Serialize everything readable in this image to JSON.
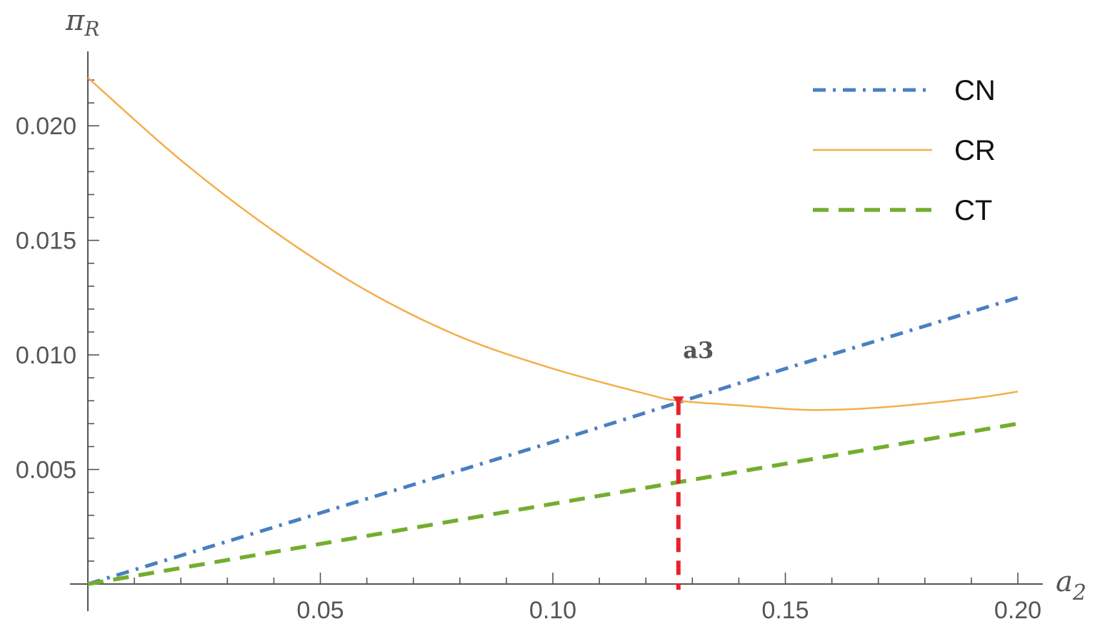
{
  "chart_data": {
    "type": "line",
    "xlabel": "a",
    "xlabel_sub": "2",
    "ylabel": "π",
    "ylabel_sub": "R",
    "xlim": [
      0,
      0.2
    ],
    "ylim": [
      0,
      0.0225
    ],
    "x_ticks": [
      {
        "value": 0.05,
        "label": "0.05"
      },
      {
        "value": 0.1,
        "label": "0.10"
      },
      {
        "value": 0.15,
        "label": "0.15"
      },
      {
        "value": 0.2,
        "label": "0.20"
      }
    ],
    "y_ticks": [
      {
        "value": 0.005,
        "label": "0.005"
      },
      {
        "value": 0.01,
        "label": "0.010"
      },
      {
        "value": 0.015,
        "label": "0.015"
      },
      {
        "value": 0.02,
        "label": "0.020"
      }
    ],
    "legend_position": "top-right",
    "series": [
      {
        "name": "CN",
        "color": "#4a7fc1",
        "dash": "dashdot",
        "x": [
          0,
          0.05,
          0.1,
          0.15,
          0.2
        ],
        "y": [
          0,
          0.0031,
          0.0062,
          0.0094,
          0.0125
        ]
      },
      {
        "name": "CR",
        "color": "#f5ae4a",
        "dash": "solid",
        "x": [
          0,
          0.02,
          0.04,
          0.06,
          0.08,
          0.1,
          0.12,
          0.127,
          0.14,
          0.155,
          0.17,
          0.19,
          0.2
        ],
        "y": [
          0.0221,
          0.0185,
          0.0154,
          0.0128,
          0.0108,
          0.0094,
          0.0083,
          0.008,
          0.0078,
          0.0076,
          0.0077,
          0.0081,
          0.0084
        ]
      },
      {
        "name": "CT",
        "color": "#74ad2e",
        "dash": "dashed",
        "x": [
          0,
          0.05,
          0.1,
          0.15,
          0.2
        ],
        "y": [
          0,
          0.00175,
          0.0035,
          0.00525,
          0.007
        ]
      }
    ],
    "annotations": [
      {
        "label": "a3",
        "x": 0.127,
        "y": 0.008,
        "color": "#e8212b"
      }
    ]
  }
}
